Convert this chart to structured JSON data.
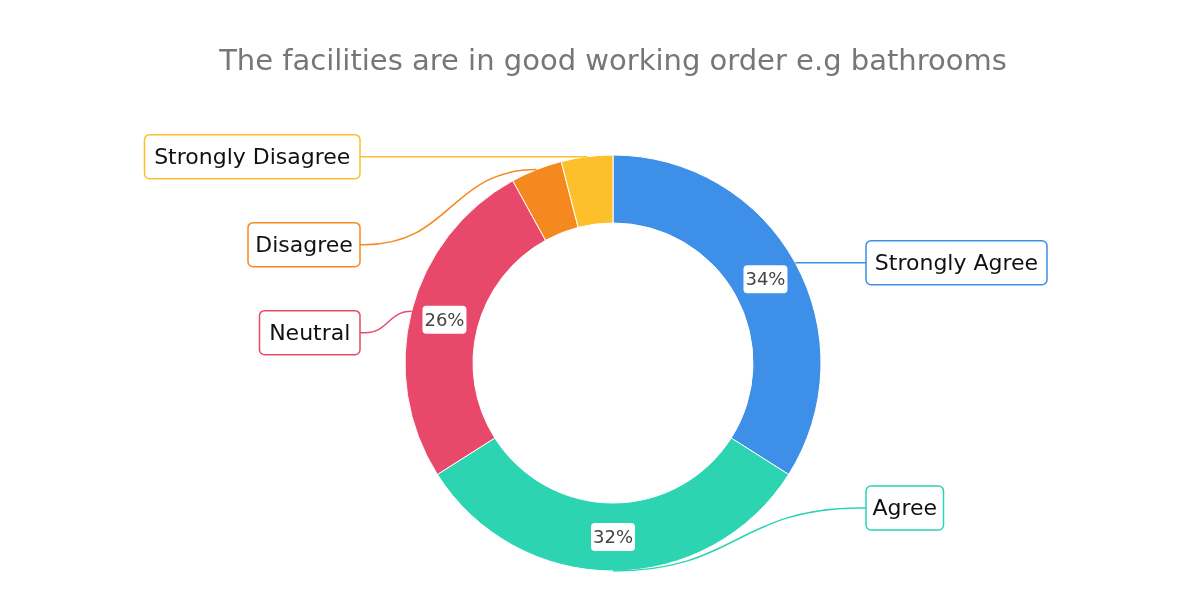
{
  "chart_data": {
    "type": "donut",
    "title": "The facilities are in good working order e.g bathrooms",
    "categories": [
      "Strongly Agree",
      "Agree",
      "Neutral",
      "Disagree",
      "Strongly Disagree"
    ],
    "values": [
      34,
      32,
      26,
      4,
      4
    ],
    "colors": [
      "#3d8fe8",
      "#2dd4b2",
      "#e8496b",
      "#f5891f",
      "#fdc02b"
    ],
    "value_labels": [
      "34%",
      "32%",
      "26%",
      null,
      null
    ]
  }
}
